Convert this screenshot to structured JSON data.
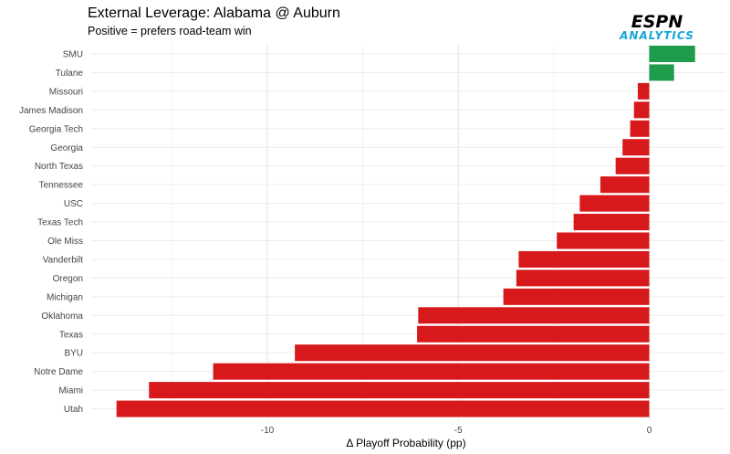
{
  "title": "External Leverage: Alabama @ Auburn",
  "subtitle": "Positive = prefers road-team win",
  "logo": {
    "line1": "ESPN",
    "line2": "ANALYTICS"
  },
  "chart_data": {
    "type": "bar",
    "orientation": "horizontal",
    "xlabel": "Δ Playoff Probability (pp)",
    "ylabel": "",
    "xlim": [
      -14,
      2
    ],
    "xticks": [
      -10,
      -5,
      0
    ],
    "xtick_labels": [
      "-10",
      "-5",
      "0"
    ],
    "grid": true,
    "colors": {
      "positive": "#1e9b4b",
      "negative": "#d7191c"
    },
    "categories": [
      "SMU",
      "Tulane",
      "Missouri",
      "James Madison",
      "Georgia Tech",
      "Georgia",
      "North Texas",
      "Tennessee",
      "USC",
      "Texas Tech",
      "Ole Miss",
      "Vanderbilt",
      "Oregon",
      "Michigan",
      "Oklahoma",
      "Texas",
      "BYU",
      "Notre Dame",
      "Miami",
      "Utah"
    ],
    "values": [
      1.2,
      0.65,
      -0.3,
      -0.4,
      -0.5,
      -0.7,
      -0.88,
      -1.28,
      -1.82,
      -1.98,
      -2.42,
      -3.42,
      -3.48,
      -3.82,
      -6.05,
      -6.08,
      -9.28,
      -11.42,
      -13.1,
      -13.95
    ]
  }
}
